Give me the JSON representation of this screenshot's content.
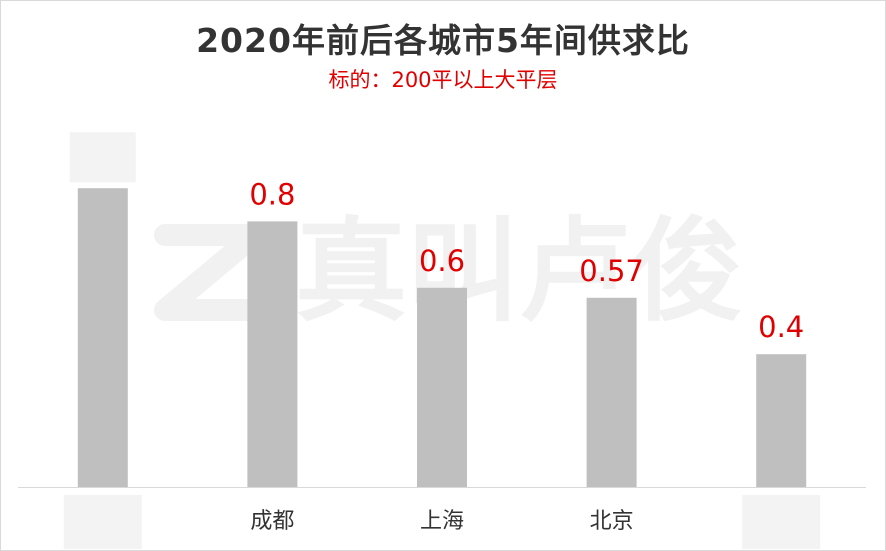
{
  "chart_data": {
    "type": "bar",
    "title": "2020年前后各城市5年间供求比",
    "subtitle": "标的：200平以上大平层",
    "categories": [
      "",
      "成都",
      "上海",
      "北京",
      ""
    ],
    "values": [
      0.9,
      0.8,
      0.6,
      0.57,
      0.4
    ],
    "data_labels": [
      "",
      "0.8",
      "0.6",
      "0.57",
      "0.4"
    ],
    "ylim": [
      0,
      1
    ],
    "grid": false,
    "legend": "none",
    "colors": {
      "bar": "#bfbfbf",
      "label": "#e00000",
      "axis": "#d9d9d9",
      "category_text": "#333333",
      "blur_mask": "#f3f3f3"
    }
  },
  "watermark": {
    "logo_text": "真叫卢俊",
    "icon": "z-logo-icon"
  }
}
